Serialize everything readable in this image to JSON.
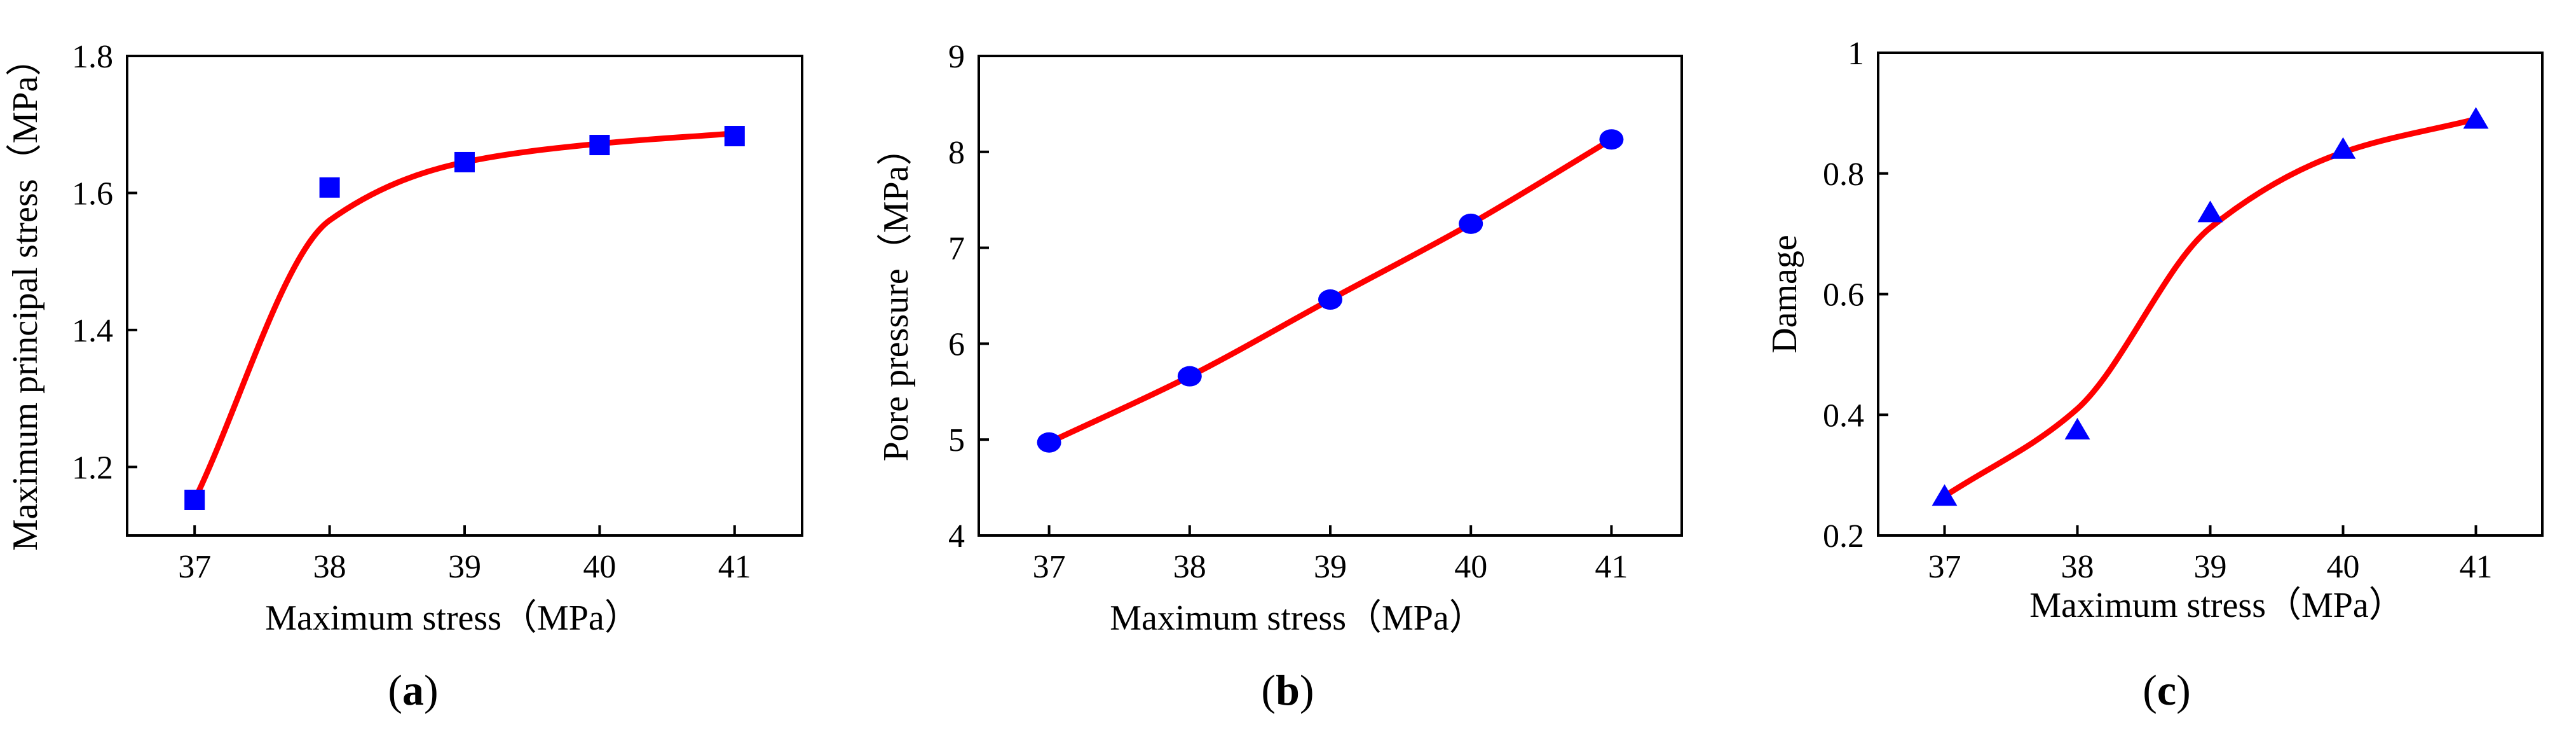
{
  "colors": {
    "fit_line": "#ff0000",
    "markers": "#0000ff",
    "axis": "#000000"
  },
  "chart_data": [
    {
      "type": "scatter",
      "panel_label": "a",
      "marker": "square",
      "x": [
        37,
        38,
        39,
        40,
        41
      ],
      "y": [
        1.152,
        1.608,
        1.645,
        1.67,
        1.683
      ],
      "fit_y": [
        1.152,
        1.56,
        1.645,
        1.672,
        1.687
      ],
      "fit_label": "fitted curve",
      "xlim": [
        36.5,
        41.5
      ],
      "ylim": [
        1.1,
        1.8
      ],
      "xticks": [
        37,
        38,
        39,
        40,
        41
      ],
      "yticks": [
        1.2,
        1.4,
        1.6,
        1.8
      ],
      "ytick_labels": [
        "1.2",
        "1.4",
        "1.6",
        "1.8"
      ],
      "xlabel": "Maximum stress（MPa）",
      "ylabel": "Maximum principal stress（MPa）"
    },
    {
      "type": "scatter",
      "panel_label": "b",
      "marker": "circle",
      "x": [
        37,
        38,
        39,
        40,
        41
      ],
      "y": [
        4.97,
        5.66,
        6.46,
        7.25,
        8.13
      ],
      "fit_y": [
        4.97,
        5.66,
        6.46,
        7.25,
        8.13
      ],
      "fit_label": "fitted curve",
      "xlim": [
        36.5,
        41.5
      ],
      "ylim": [
        4,
        9
      ],
      "xticks": [
        37,
        38,
        39,
        40,
        41
      ],
      "yticks": [
        4,
        5,
        6,
        7,
        8,
        9
      ],
      "ytick_labels": [
        "4",
        "5",
        "6",
        "7",
        "8",
        "9"
      ],
      "xlabel": "Maximum stress（MPa）",
      "ylabel": "Pore pressure（MPa）"
    },
    {
      "type": "scatter",
      "panel_label": "c",
      "marker": "triangle",
      "x": [
        37,
        38,
        39,
        40,
        41
      ],
      "y": [
        0.265,
        0.375,
        0.735,
        0.84,
        0.89
      ],
      "fit_y": [
        0.265,
        0.41,
        0.71,
        0.835,
        0.89
      ],
      "fit_label": "fitted curve",
      "xlim": [
        36.5,
        41.5
      ],
      "ylim": [
        0.2,
        1.0
      ],
      "xticks": [
        37,
        38,
        39,
        40,
        41
      ],
      "yticks": [
        0.2,
        0.4,
        0.6,
        0.8,
        1.0
      ],
      "ytick_labels": [
        "0.2",
        "0.4",
        "0.6",
        "0.8",
        "1"
      ],
      "xlabel": "Maximum stress（MPa）",
      "ylabel": "Damage"
    }
  ]
}
